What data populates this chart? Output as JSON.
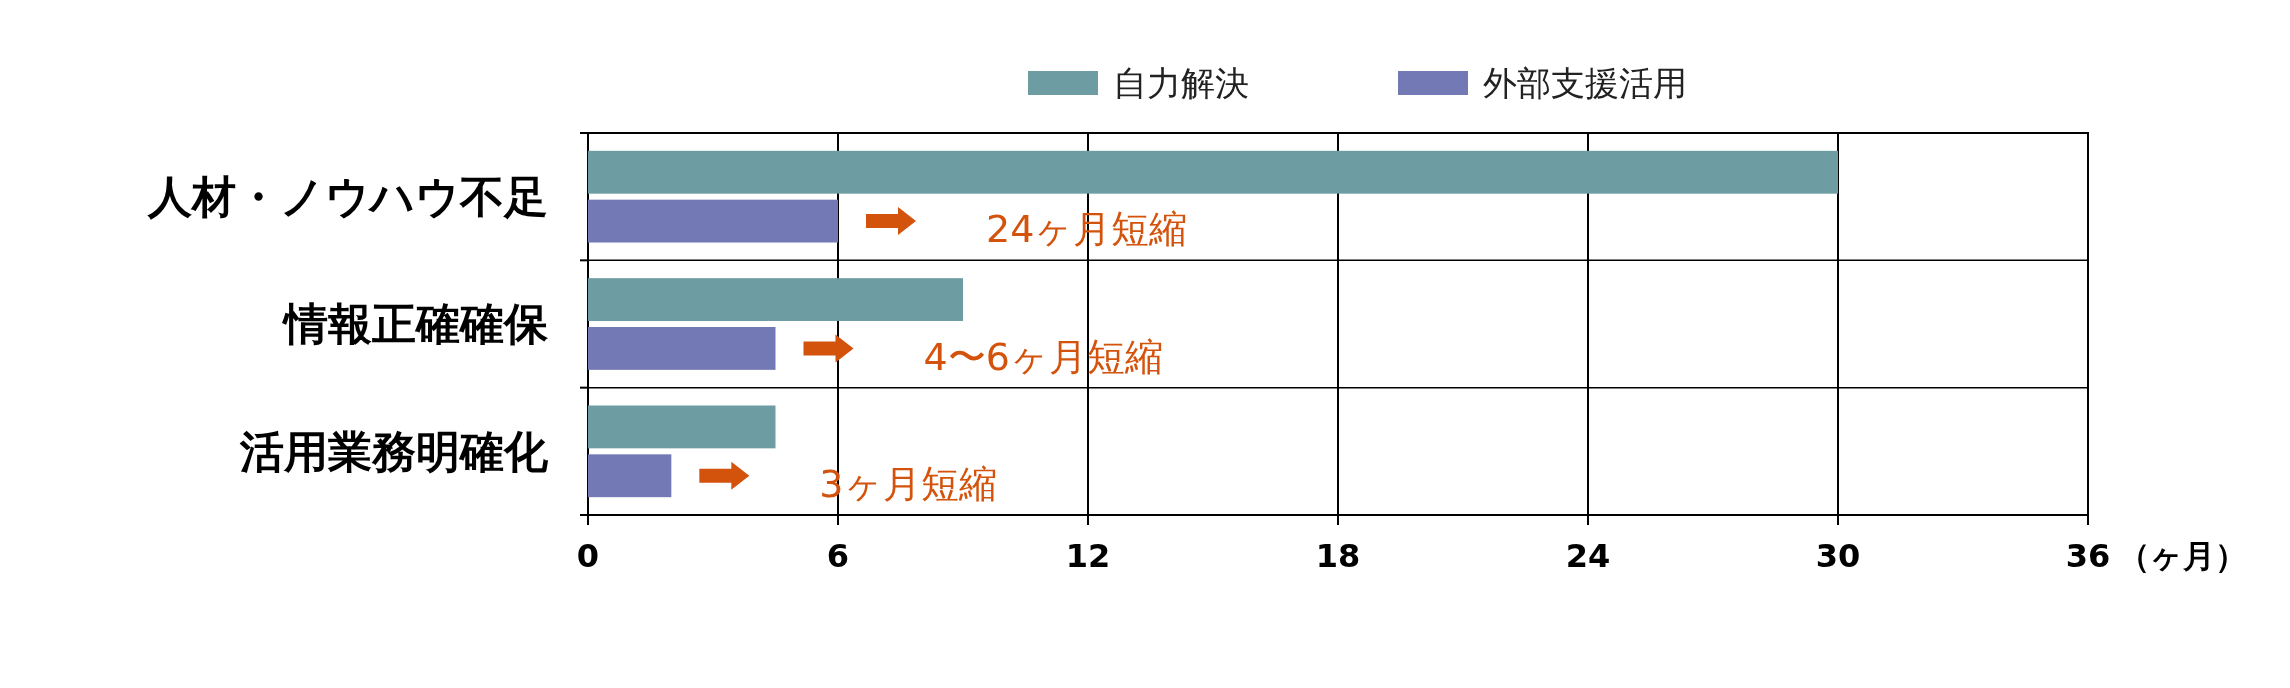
{
  "chart_data": {
    "type": "bar",
    "orientation": "horizontal",
    "categories": [
      "人材・ノウハウ不足",
      "情報正確確保",
      "活用業務明確化"
    ],
    "series": [
      {
        "name": "自力解決",
        "color": "#6e9ca3",
        "values": [
          30,
          9,
          4.5
        ]
      },
      {
        "name": "外部支援活用",
        "color": "#7279b5",
        "values": [
          6,
          4.5,
          2
        ]
      }
    ],
    "xlim": [
      0,
      36
    ],
    "xticks": [
      0,
      6,
      12,
      18,
      24,
      30,
      36
    ],
    "xlabel": "（ヶ月）",
    "grid": true,
    "legend": "top",
    "annotations": [
      "24ヶ月短縮",
      "4〜6ヶ月短縮",
      "3ヶ月短縮"
    ]
  }
}
